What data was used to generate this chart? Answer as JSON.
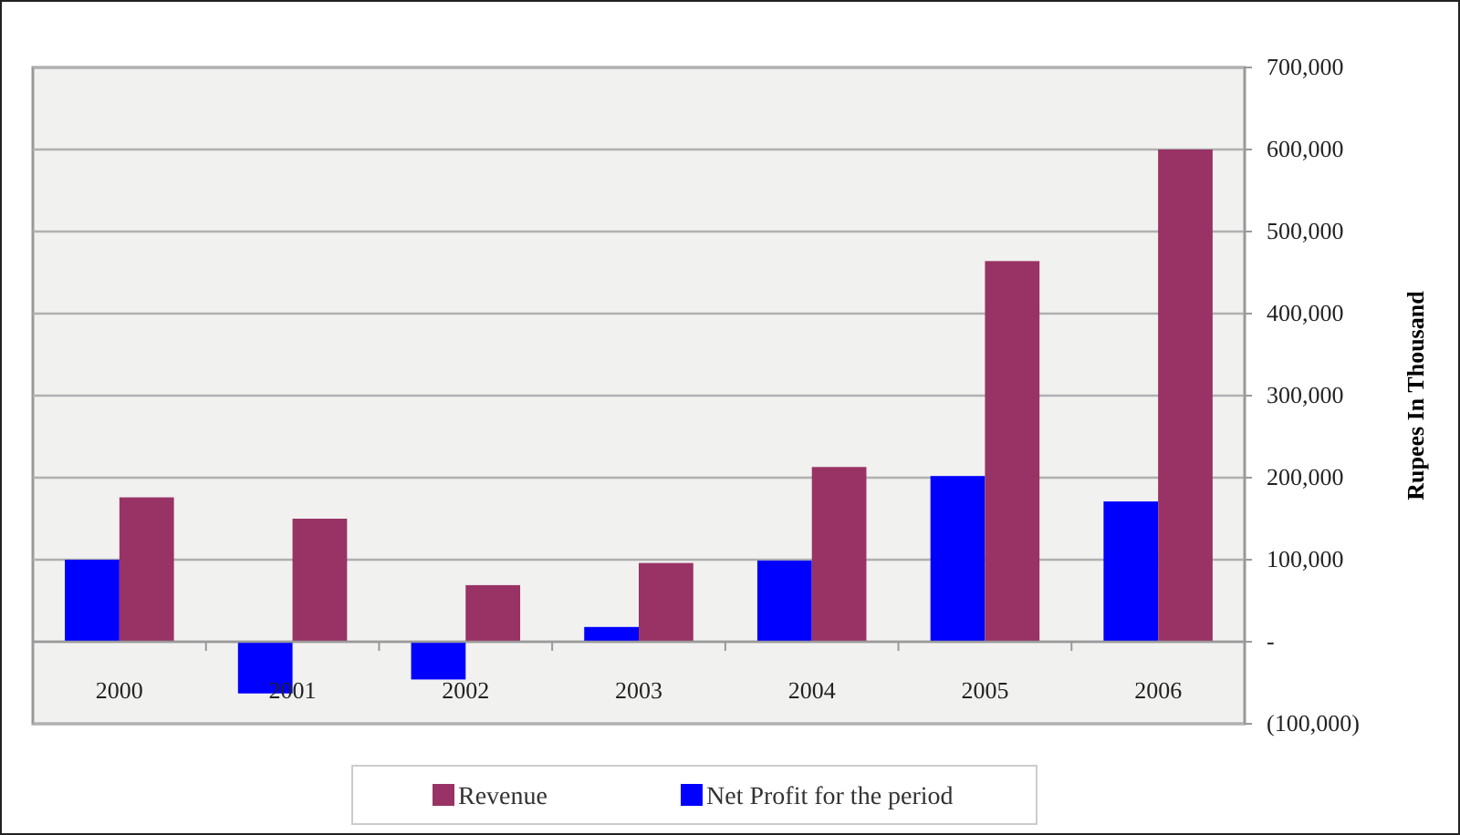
{
  "chart_data": {
    "type": "bar",
    "ylabel": "Rupees In Thousand",
    "categories": [
      "2000",
      "2001",
      "2002",
      "2003",
      "2004",
      "2005",
      "2006"
    ],
    "series": [
      {
        "name": "Net Profit for the period",
        "color": "#0000ff",
        "values": [
          100000,
          -63000,
          -46000,
          18000,
          99000,
          202000,
          171000
        ]
      },
      {
        "name": "Revenue",
        "color": "#993366",
        "values": [
          176000,
          150000,
          69000,
          96000,
          213000,
          464000,
          600000
        ]
      }
    ],
    "ylim": [
      -100000,
      700000
    ],
    "yticks": [
      {
        "value": -100000,
        "label": "(100,000)"
      },
      {
        "value": 0,
        "label": "-"
      },
      {
        "value": 100000,
        "label": "100,000"
      },
      {
        "value": 200000,
        "label": "200,000"
      },
      {
        "value": 300000,
        "label": "300,000"
      },
      {
        "value": 400000,
        "label": "400,000"
      },
      {
        "value": 500000,
        "label": "500,000"
      },
      {
        "value": 600000,
        "label": "600,000"
      },
      {
        "value": 700000,
        "label": "700,000"
      }
    ],
    "grid": "y",
    "legend": "bottom"
  }
}
